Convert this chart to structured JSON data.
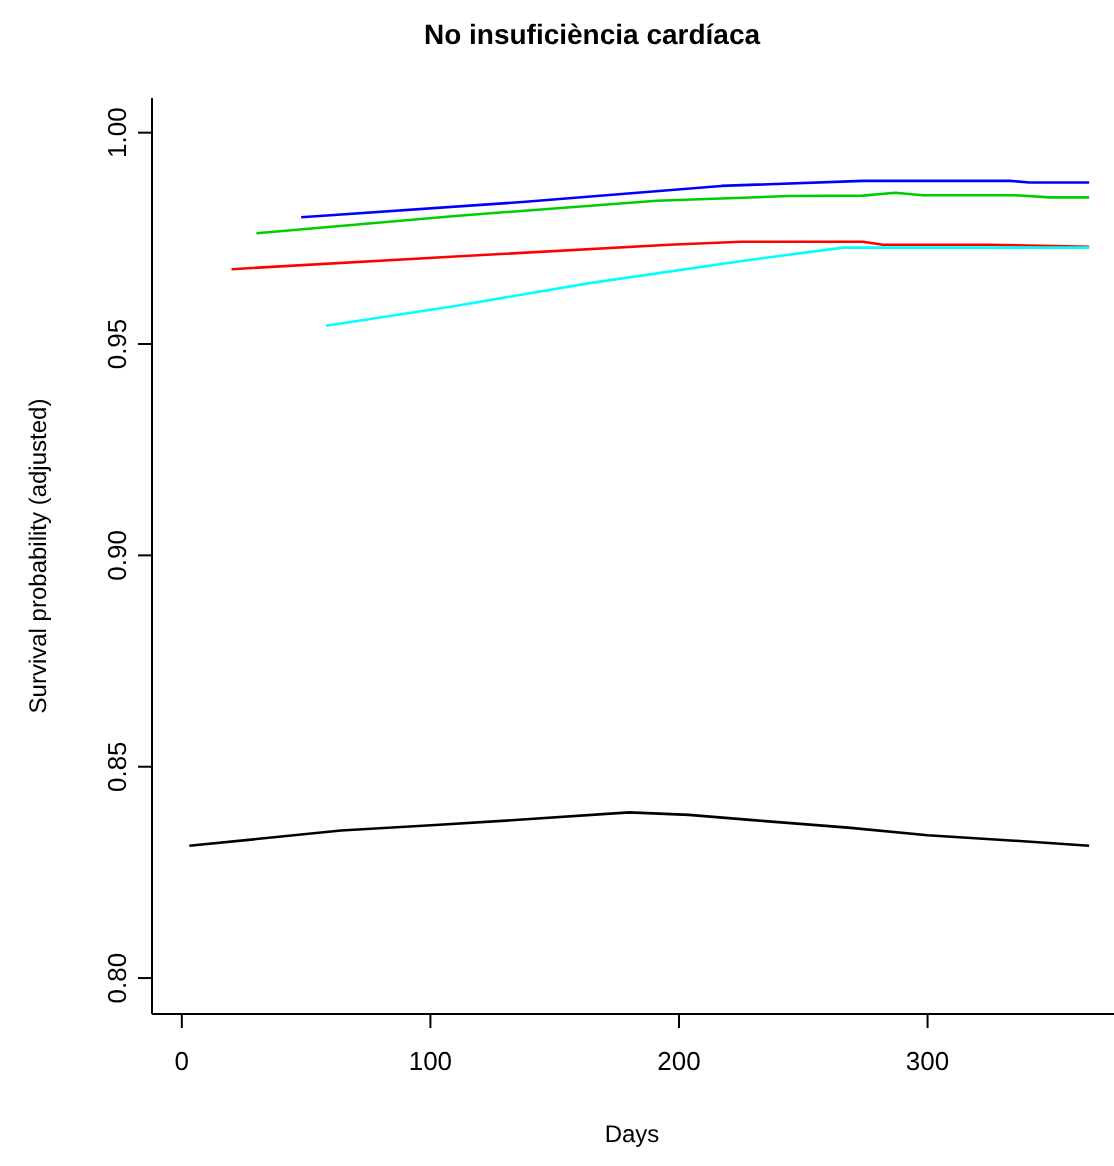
{
  "chart_data": {
    "type": "line",
    "title": "No insuficiència cardíaca",
    "xlabel": "Days",
    "ylabel": "Survival probability (adjusted)",
    "xlim": [
      -12,
      375
    ],
    "xticks": [
      0,
      100,
      200,
      300
    ],
    "ylim": [
      0.7915,
      1.0082
    ],
    "yticks": [
      {
        "value": 0.8,
        "label": "0.80"
      },
      {
        "value": 0.85,
        "label": "0.85"
      },
      {
        "value": 0.9,
        "label": "0.90"
      },
      {
        "value": 0.95,
        "label": "0.95"
      },
      {
        "value": 1.0,
        "label": "1.00"
      }
    ],
    "grid": false,
    "legend": false,
    "marker": "none",
    "line_style": "solid",
    "series": [
      {
        "color": "#000000",
        "x": [
          3,
          64,
          102,
          137,
          180,
          204,
          231,
          268,
          300,
          335,
          365
        ],
        "values": [
          0.8313,
          0.8349,
          0.8362,
          0.8375,
          0.8392,
          0.8386,
          0.8373,
          0.8356,
          0.8338,
          0.8325,
          0.8313
        ]
      },
      {
        "color": "#0000ff",
        "x": [
          48,
          137,
          217,
          274,
          333,
          341,
          365
        ],
        "values": [
          0.98,
          0.9836,
          0.9874,
          0.9886,
          0.9886,
          0.9882,
          0.9882
        ]
      },
      {
        "color": "#00cd00",
        "x": [
          30,
          110,
          191,
          244,
          274,
          287,
          298,
          335,
          349,
          365
        ],
        "values": [
          0.9762,
          0.9803,
          0.9839,
          0.985,
          0.9851,
          0.9858,
          0.9852,
          0.9852,
          0.9847,
          0.9847
        ]
      },
      {
        "color": "#ff0000",
        "x": [
          20,
          110,
          196,
          225,
          274,
          282,
          324,
          365
        ],
        "values": [
          0.9677,
          0.9707,
          0.9735,
          0.9742,
          0.9742,
          0.9735,
          0.9735,
          0.973
        ]
      },
      {
        "color": "#00ffff",
        "x": [
          58,
          110,
          164,
          231,
          266,
          324,
          365
        ],
        "values": [
          0.9543,
          0.959,
          0.9644,
          0.9701,
          0.9728,
          0.9728,
          0.9728
        ]
      }
    ]
  }
}
